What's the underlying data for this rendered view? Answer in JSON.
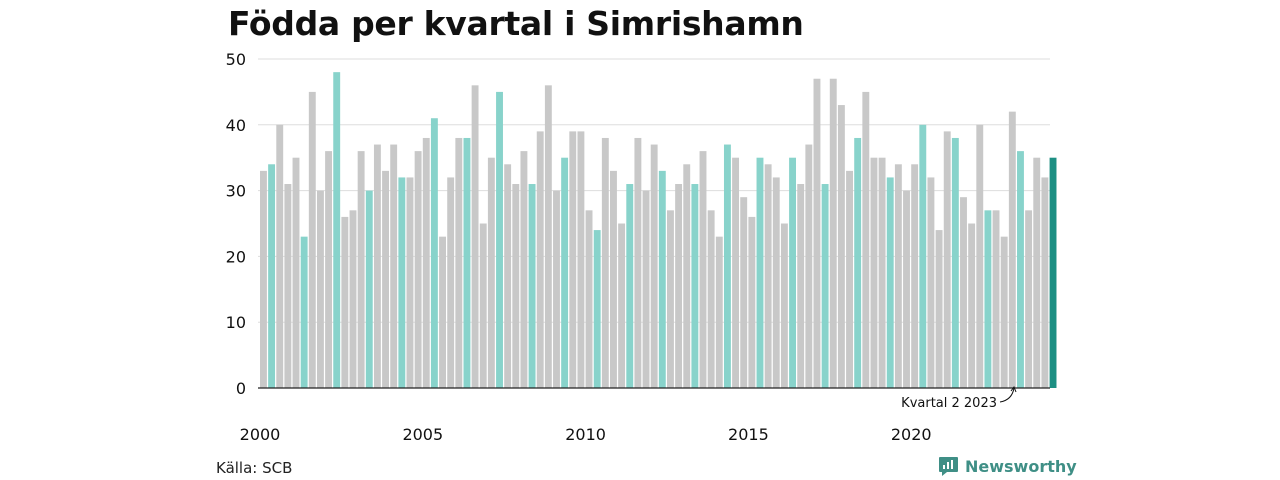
{
  "chart_data": {
    "type": "bar",
    "title": "Födda per kvartal i Simrishamn",
    "xlabel": "",
    "ylabel": "",
    "ylim": [
      0,
      50
    ],
    "yticks": [
      "0",
      "10",
      "20",
      "30",
      "40",
      "50"
    ],
    "xticks": [
      "2000",
      "2005",
      "2010",
      "2015",
      "2020"
    ],
    "x_start_year": 2000,
    "grid": true,
    "legend": "none",
    "highlight_quarter": 2,
    "annotation": "Kvartal 2 2023",
    "colors": {
      "default": "#c8c8c8",
      "highlight": "#88d3cb",
      "latest": "#1d8f83",
      "grid": "#dddddd",
      "axis": "#222222"
    },
    "values": [
      33,
      34,
      40,
      31,
      35,
      23,
      45,
      30,
      36,
      48,
      26,
      27,
      36,
      30,
      37,
      33,
      37,
      32,
      32,
      36,
      38,
      41,
      23,
      32,
      38,
      38,
      46,
      25,
      35,
      45,
      34,
      31,
      36,
      31,
      39,
      46,
      30,
      35,
      39,
      39,
      27,
      24,
      38,
      33,
      25,
      31,
      38,
      30,
      37,
      33,
      27,
      31,
      34,
      31,
      36,
      27,
      23,
      37,
      35,
      29,
      26,
      35,
      34,
      32,
      25,
      35,
      31,
      37,
      47,
      31,
      47,
      43,
      33,
      38,
      45,
      35,
      35,
      32,
      34,
      30,
      34,
      40,
      32,
      24,
      39,
      38,
      29,
      25,
      40,
      27,
      27,
      23,
      42,
      36,
      27,
      35,
      32,
      35
    ]
  },
  "source": "Källa: SCB",
  "brand": {
    "name": "Newsworthy",
    "icon": "newsworthy-logo-icon"
  }
}
